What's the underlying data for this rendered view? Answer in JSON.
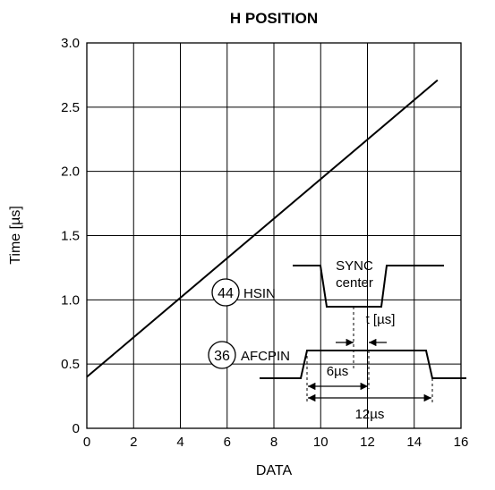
{
  "chart_data": {
    "type": "line",
    "title": "H POSITION",
    "xlabel": "DATA",
    "ylabel": "Time [µs]",
    "xlim": [
      0,
      16
    ],
    "ylim": [
      0,
      3.0
    ],
    "x_ticks": [
      0,
      2,
      4,
      6,
      8,
      10,
      12,
      14,
      16
    ],
    "y_ticks": [
      0,
      0.5,
      1.0,
      1.5,
      2.0,
      2.5,
      3.0
    ],
    "x_tick_labels": [
      "0",
      "2",
      "4",
      "6",
      "8",
      "10",
      "12",
      "14",
      "16"
    ],
    "y_tick_labels": [
      "0",
      "0.5",
      "1.0",
      "1.5",
      "2.0",
      "2.5",
      "3.0"
    ],
    "grid": true,
    "series": [
      {
        "x": [
          0,
          15
        ],
        "y": [
          0.4,
          2.71
        ]
      }
    ],
    "inset": {
      "hsin_pin": "44",
      "hsin_label": "HSIN",
      "afcpin_pin": "36",
      "afcpin_label": "AFCPIN",
      "sync_label_1": "SYNC",
      "sync_label_2": "center",
      "t_label": "t [µs]",
      "six_label": "6µs",
      "twelve_label": "12µs"
    }
  }
}
